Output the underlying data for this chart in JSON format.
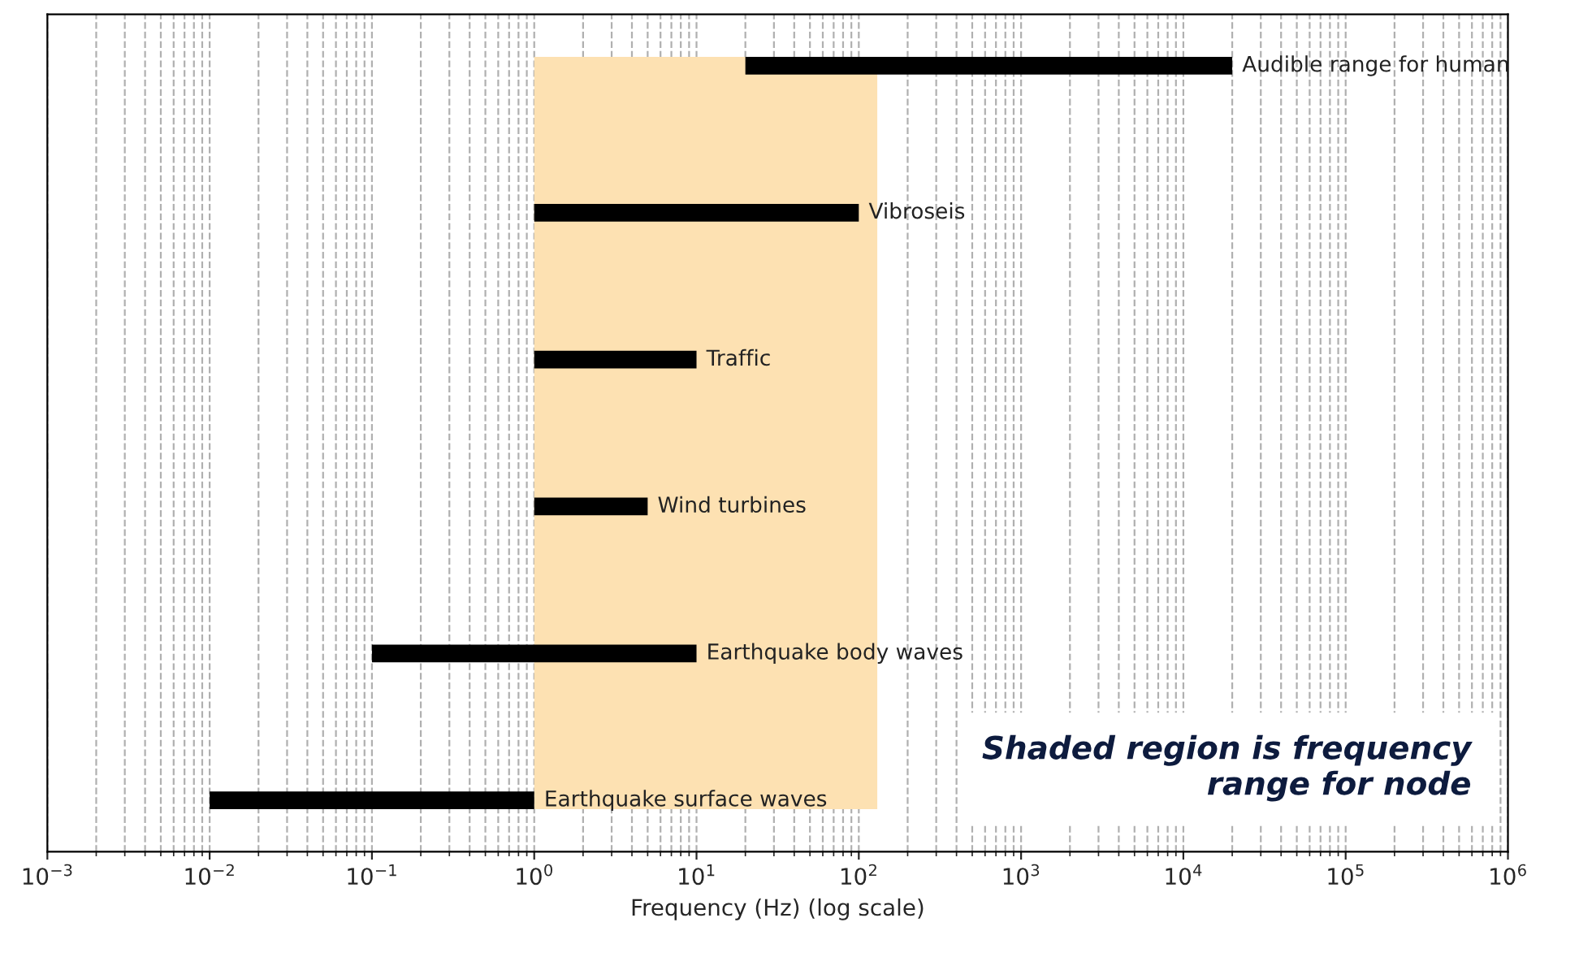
{
  "chart_data": {
    "type": "bar",
    "orientation": "horizontal",
    "xlabel": "Frequency (Hz) (log scale)",
    "categories": [
      "Audible range for human",
      "Vibroseis",
      "Traffic",
      "Wind turbines",
      "Earthquake body waves",
      "Earthquake surface waves"
    ],
    "base": [
      20,
      1,
      1,
      1,
      0.1,
      0.01
    ],
    "values": [
      19980,
      99,
      9,
      4,
      9.9,
      0.99
    ],
    "color": "#000000",
    "log": "x",
    "xlim": [
      0.001,
      1000000
    ],
    "xticks": [
      {
        "value": 0.001,
        "label": "10$^{−3}$"
      },
      {
        "value": 0.01,
        "label": "10$^{−2}$"
      },
      {
        "value": 0.1,
        "label": "10$^{−1}$"
      },
      {
        "value": 1,
        "label": "10$^{0}$"
      },
      {
        "value": 10,
        "label": "10$^{1}$"
      },
      {
        "value": 100,
        "label": "10$^{2}$"
      },
      {
        "value": 1000,
        "label": "10$^{3}$"
      },
      {
        "value": 10000,
        "label": "10$^{4}$"
      },
      {
        "value": 100000,
        "label": "10$^{5}$"
      },
      {
        "value": 1000000,
        "label": "10$^{6}$"
      }
    ],
    "tick_labels": "x",
    "grid": "x",
    "bands": [
      {
        "axis": "x",
        "from": 1,
        "to": 130,
        "color": "#fde1b2"
      }
    ],
    "annotations": [
      "Shaded region is frequency range for node"
    ]
  }
}
